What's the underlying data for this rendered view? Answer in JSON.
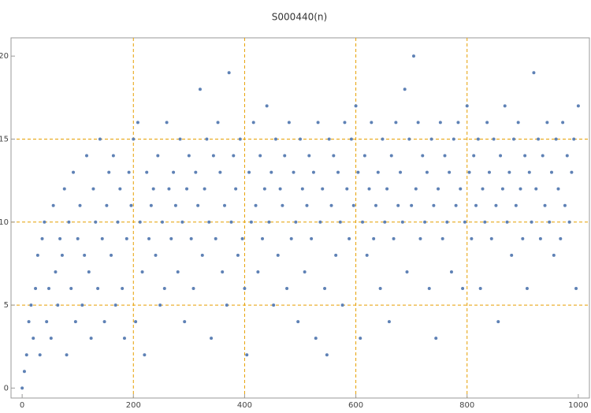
{
  "chart_data": {
    "type": "scatter",
    "title": "S000440(n)",
    "x": [
      0,
      4,
      8,
      12,
      16,
      20,
      24,
      28,
      32,
      36,
      40,
      44,
      48,
      52,
      56,
      60,
      64,
      68,
      72,
      76,
      80,
      84,
      88,
      92,
      96,
      100,
      104,
      108,
      112,
      116,
      120,
      124,
      128,
      132,
      136,
      140,
      144,
      148,
      152,
      156,
      160,
      164,
      168,
      172,
      176,
      180,
      184,
      188,
      192,
      196,
      200,
      204,
      208,
      212,
      216,
      220,
      224,
      228,
      232,
      236,
      240,
      244,
      248,
      252,
      256,
      260,
      264,
      268,
      272,
      276,
      280,
      284,
      288,
      292,
      296,
      300,
      304,
      308,
      312,
      316,
      320,
      324,
      328,
      332,
      336,
      340,
      344,
      348,
      352,
      356,
      360,
      364,
      368,
      372,
      376,
      380,
      384,
      388,
      392,
      396,
      400,
      404,
      408,
      412,
      416,
      420,
      424,
      428,
      432,
      436,
      440,
      444,
      448,
      452,
      456,
      460,
      464,
      468,
      472,
      476,
      480,
      484,
      488,
      492,
      496,
      500,
      504,
      508,
      512,
      516,
      520,
      524,
      528,
      532,
      536,
      540,
      544,
      548,
      552,
      556,
      560,
      564,
      568,
      572,
      576,
      580,
      584,
      588,
      592,
      596,
      600,
      604,
      608,
      612,
      616,
      620,
      624,
      628,
      632,
      636,
      640,
      644,
      648,
      652,
      656,
      660,
      664,
      668,
      672,
      676,
      680,
      684,
      688,
      692,
      696,
      700,
      704,
      708,
      712,
      716,
      720,
      724,
      728,
      732,
      736,
      740,
      744,
      748,
      752,
      756,
      760,
      764,
      768,
      772,
      776,
      780,
      784,
      788,
      792,
      796,
      800,
      804,
      808,
      812,
      816,
      820,
      824,
      828,
      832,
      836,
      840,
      844,
      848,
      852,
      856,
      860,
      864,
      868,
      872,
      876,
      880,
      884,
      888,
      892,
      896,
      900,
      904,
      908,
      912,
      916,
      920,
      924,
      928,
      932,
      936,
      940,
      944,
      948,
      952,
      956,
      960,
      964,
      968,
      972,
      976,
      980,
      984,
      988,
      992,
      996,
      1000
    ],
    "values": [
      0,
      1,
      2,
      4,
      5,
      3,
      6,
      8,
      2,
      9,
      10,
      4,
      6,
      3,
      11,
      7,
      5,
      9,
      8,
      12,
      2,
      10,
      6,
      13,
      4,
      9,
      11,
      5,
      8,
      14,
      7,
      3,
      12,
      10,
      6,
      15,
      9,
      4,
      11,
      13,
      8,
      14,
      5,
      10,
      12,
      6,
      3,
      9,
      13,
      11,
      15,
      4,
      16,
      10,
      7,
      2,
      13,
      9,
      11,
      12,
      8,
      14,
      5,
      10,
      6,
      16,
      12,
      9,
      13,
      11,
      7,
      15,
      10,
      4,
      12,
      14,
      9,
      6,
      13,
      11,
      18,
      8,
      12,
      15,
      10,
      3,
      14,
      9,
      16,
      13,
      7,
      11,
      5,
      19,
      10,
      14,
      12,
      8,
      15,
      9,
      6,
      2,
      13,
      10,
      16,
      11,
      7,
      14,
      9,
      12,
      17,
      10,
      13,
      5,
      15,
      8,
      12,
      11,
      14,
      6,
      16,
      9,
      13,
      10,
      4,
      15,
      12,
      7,
      11,
      14,
      9,
      13,
      3,
      16,
      10,
      12,
      6,
      2,
      15,
      11,
      14,
      8,
      13,
      10,
      5,
      16,
      12,
      9,
      15,
      11,
      17,
      13,
      3,
      10,
      14,
      8,
      12,
      16,
      9,
      11,
      13,
      6,
      15,
      10,
      12,
      4,
      14,
      9,
      16,
      11,
      13,
      10,
      18,
      7,
      15,
      11,
      20,
      12,
      16,
      9,
      14,
      10,
      13,
      6,
      15,
      11,
      3,
      12,
      16,
      9,
      14,
      10,
      13,
      7,
      15,
      11,
      16,
      12,
      6,
      10,
      17,
      13,
      9,
      14,
      11,
      15,
      6,
      12,
      10,
      16,
      13,
      9,
      15,
      11,
      4,
      14,
      12,
      17,
      10,
      13,
      8,
      15,
      11,
      16,
      12,
      9,
      14,
      6,
      13,
      10,
      19,
      12,
      15,
      9,
      14,
      11,
      16,
      10,
      13,
      8,
      15,
      12,
      9,
      16,
      11,
      14,
      10,
      13,
      15,
      6,
      17
    ],
    "color": "#5e81b5",
    "xlim": [
      -20,
      1020
    ],
    "ylim": [
      -0.6,
      21.1
    ],
    "xticks": [
      0,
      200,
      400,
      600,
      800,
      1000
    ],
    "yticks": [
      0,
      5,
      10,
      15,
      20
    ],
    "xgrid": [
      200,
      400,
      600,
      800
    ],
    "ygrid": [
      5,
      10,
      15
    ],
    "grid_color": "#e69f00"
  }
}
